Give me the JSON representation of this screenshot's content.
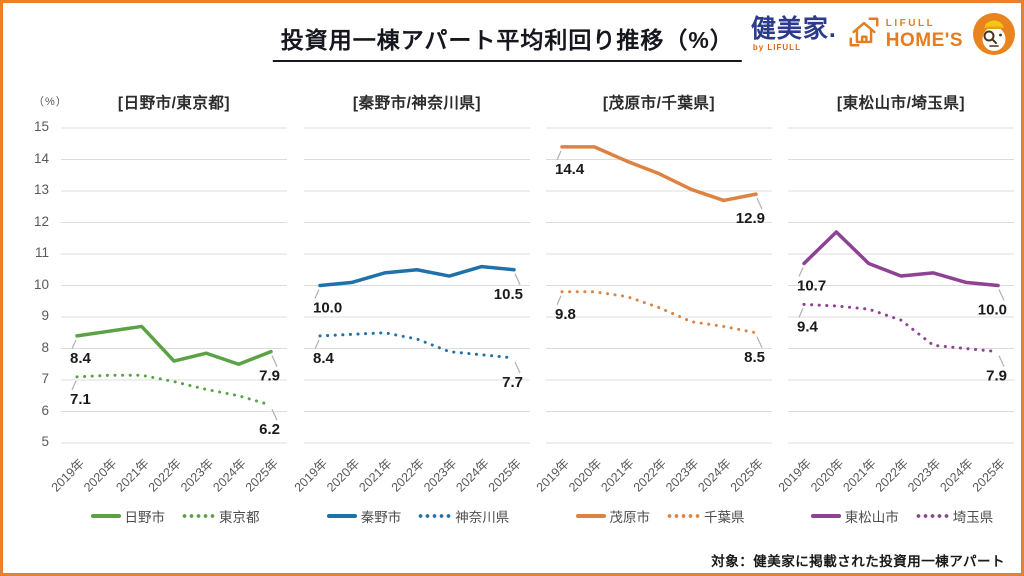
{
  "header": {
    "title": "投資用一棟アパート平均利回り推移（%）",
    "logos": {
      "kenbiya": "健美家.",
      "kenbiya_by": "by LIFULL",
      "homes_top": "LIFULL",
      "homes_bottom": "HOME'S"
    }
  },
  "axis": {
    "unit_label": "（%）",
    "ymin": 5,
    "ymax": 15,
    "yticks": [
      15,
      14,
      13,
      12,
      11,
      10,
      9,
      8,
      7,
      6,
      5
    ]
  },
  "colors": {
    "frame": "#e8802e",
    "grid": "#dcdcdc",
    "leader": "#b0b0b0",
    "green": "#5ba245",
    "blue": "#2171a9",
    "orange": "#dd8240",
    "purple": "#8d4293"
  },
  "chart_data": [
    {
      "type": "line",
      "title": "[日野市/東京都]",
      "x": [
        "2019年",
        "2020年",
        "2021年",
        "2022年",
        "2023年",
        "2024年",
        "2025年"
      ],
      "ylim": [
        5,
        15
      ],
      "series": [
        {
          "name": "日野市",
          "line": "solid",
          "color_key": "green",
          "values": [
            8.4,
            8.55,
            8.7,
            7.6,
            7.85,
            7.5,
            7.9
          ],
          "first_label": "8.4",
          "last_label": "7.9"
        },
        {
          "name": "東京都",
          "line": "dotted",
          "color_key": "green",
          "values": [
            7.1,
            7.15,
            7.15,
            6.95,
            6.7,
            6.5,
            6.2
          ],
          "first_label": "7.1",
          "last_label": "6.2"
        }
      ]
    },
    {
      "type": "line",
      "title": "[秦野市/神奈川県]",
      "x": [
        "2019年",
        "2020年",
        "2021年",
        "2022年",
        "2023年",
        "2024年",
        "2025年"
      ],
      "ylim": [
        5,
        15
      ],
      "series": [
        {
          "name": "秦野市",
          "line": "solid",
          "color_key": "blue",
          "values": [
            10.0,
            10.1,
            10.4,
            10.5,
            10.3,
            10.6,
            10.5
          ],
          "first_label": "10.0",
          "last_label": "10.5"
        },
        {
          "name": "神奈川県",
          "line": "dotted",
          "color_key": "blue",
          "values": [
            8.4,
            8.45,
            8.5,
            8.3,
            7.9,
            7.8,
            7.7
          ],
          "first_label": "8.4",
          "last_label": "7.7"
        }
      ]
    },
    {
      "type": "line",
      "title": "[茂原市/千葉県]",
      "x": [
        "2019年",
        "2020年",
        "2021年",
        "2022年",
        "2023年",
        "2024年",
        "2025年"
      ],
      "ylim": [
        5,
        15
      ],
      "series": [
        {
          "name": "茂原市",
          "line": "solid",
          "color_key": "orange",
          "values": [
            14.4,
            14.4,
            13.95,
            13.55,
            13.05,
            12.7,
            12.9
          ],
          "first_label": "14.4",
          "last_label": "12.9"
        },
        {
          "name": "千葉県",
          "line": "dotted",
          "color_key": "orange",
          "values": [
            9.8,
            9.8,
            9.65,
            9.3,
            8.85,
            8.7,
            8.5
          ],
          "first_label": "9.8",
          "last_label": "8.5"
        }
      ]
    },
    {
      "type": "line",
      "title": "[東松山市/埼玉県]",
      "x": [
        "2019年",
        "2020年",
        "2021年",
        "2022年",
        "2023年",
        "2024年",
        "2025年"
      ],
      "ylim": [
        5,
        15
      ],
      "series": [
        {
          "name": "東松山市",
          "line": "solid",
          "color_key": "purple",
          "values": [
            10.7,
            11.7,
            10.7,
            10.3,
            10.4,
            10.1,
            10.0
          ],
          "first_label": "10.7",
          "last_label": "10.0"
        },
        {
          "name": "埼玉県",
          "line": "dotted",
          "color_key": "purple",
          "values": [
            9.4,
            9.35,
            9.25,
            8.9,
            8.1,
            8.0,
            7.9
          ],
          "first_label": "9.4",
          "last_label": "7.9"
        }
      ]
    }
  ],
  "footer": {
    "note": "対象：健美家に掲載された投資用一棟アパート"
  }
}
